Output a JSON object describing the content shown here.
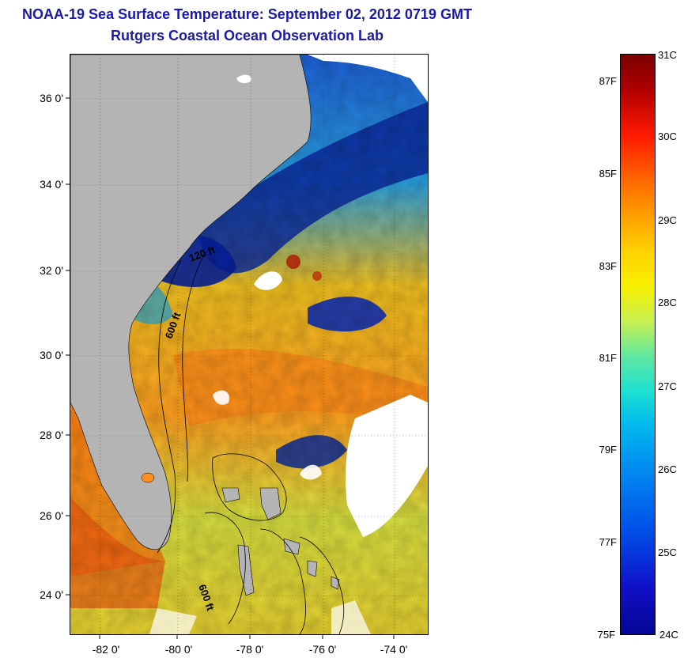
{
  "title_line1": "NOAA-19 Sea Surface Temperature:  September 02, 2012 0719 GMT",
  "title_line2": "Rutgers Coastal Ocean Observation Lab",
  "lat_labels": [
    "36 0'",
    "34 0'",
    "32 0'",
    "30 0'",
    "28 0'",
    "26 0'",
    "24 0'"
  ],
  "lon_labels": [
    "-82 0'",
    "-80 0'",
    "-78 0'",
    "-76 0'",
    "-74 0'"
  ],
  "contour_labels": [
    "120 ft",
    "600 ft",
    "600 ft"
  ],
  "colorbar": {
    "celsius": [
      "31C",
      "30C",
      "29C",
      "28C",
      "27C",
      "26C",
      "25C",
      "24C"
    ],
    "fahrenheit": [
      "87F",
      "85F",
      "83F",
      "81F",
      "79F",
      "77F",
      "75F"
    ]
  },
  "colors": {
    "title": "#1a1aa6",
    "land": "#b4b4b4",
    "cloud": "#ffffff",
    "warm": "#ff8c1a",
    "cool": "#0a2a8a"
  }
}
